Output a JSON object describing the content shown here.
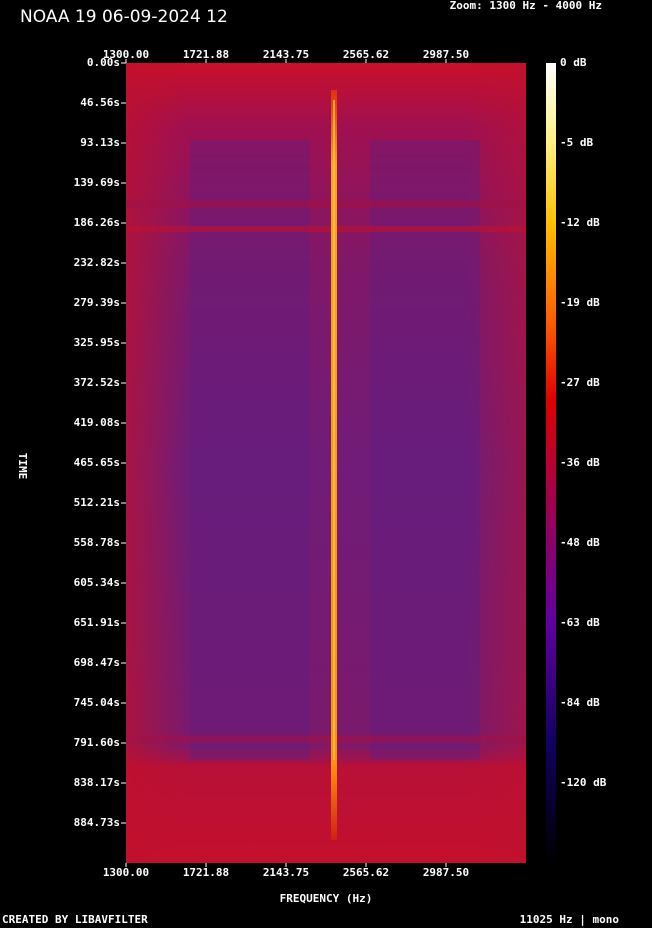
{
  "header": {
    "title": "NOAA 19 06-09-2024 12",
    "zoom": "Zoom: 1300 Hz - 4000 Hz"
  },
  "x_axis": {
    "label": "FREQUENCY (Hz)",
    "ticks": [
      "1300.00",
      "1721.88",
      "2143.75",
      "2565.62",
      "2987.50"
    ]
  },
  "y_axis": {
    "label": "TIME",
    "ticks": [
      "0.00s",
      "46.56s",
      "93.13s",
      "139.69s",
      "186.26s",
      "232.82s",
      "279.39s",
      "325.95s",
      "372.52s",
      "419.08s",
      "465.65s",
      "512.21s",
      "558.78s",
      "605.34s",
      "651.91s",
      "698.47s",
      "745.04s",
      "791.60s",
      "838.17s",
      "884.73s"
    ]
  },
  "colorbar": {
    "ticks": [
      "0 dB",
      "-5 dB",
      "-12 dB",
      "-19 dB",
      "-27 dB",
      "-36 dB",
      "-48 dB",
      "-63 dB",
      "-84 dB",
      "-120 dB"
    ]
  },
  "footer": {
    "left": "CREATED BY LIBAVFILTER",
    "right": "11025 Hz | mono"
  }
}
